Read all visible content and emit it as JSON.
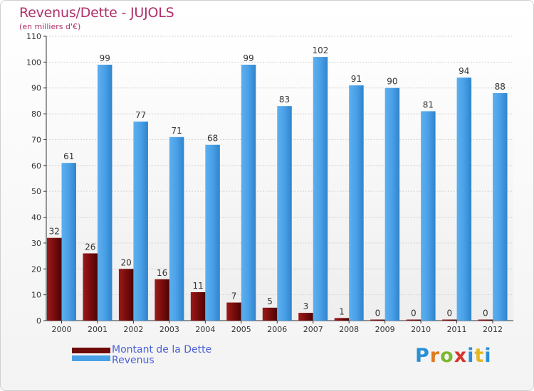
{
  "header": {
    "title": "Revenus/Dette - JUJOLS",
    "subtitle": "(en milliers d'€)"
  },
  "legend": {
    "items": [
      {
        "label": "Montant de la Dette",
        "color": "#7a0c0c"
      },
      {
        "label": "Revenus",
        "color": "#4aa0e6"
      }
    ]
  },
  "brand": {
    "text": "Proxiti",
    "letter_colors": [
      "#2a8fd6",
      "#e07a1e",
      "#7cb82f",
      "#d9342b",
      "#2a8fd6",
      "#e6b81e",
      "#2a8fd6"
    ]
  },
  "chart_data": {
    "type": "bar",
    "title": "Revenus/Dette - JUJOLS",
    "subtitle": "(en milliers d'€)",
    "xlabel": "",
    "ylabel": "",
    "categories": [
      "2000",
      "2001",
      "2002",
      "2003",
      "2004",
      "2005",
      "2006",
      "2007",
      "2008",
      "2009",
      "2010",
      "2011",
      "2012"
    ],
    "series": [
      {
        "name": "Montant de la Dette",
        "color": "#7a0c0c",
        "values": [
          32,
          26,
          20,
          16,
          11,
          7,
          5,
          3,
          1,
          0,
          0,
          0,
          0
        ]
      },
      {
        "name": "Revenus",
        "color": "#4aa0e6",
        "values": [
          61,
          99,
          77,
          71,
          68,
          99,
          83,
          102,
          91,
          90,
          81,
          94,
          88
        ]
      }
    ],
    "ylim": [
      0,
      110
    ],
    "yticks": [
      0,
      10,
      20,
      30,
      40,
      50,
      60,
      70,
      80,
      90,
      100,
      110
    ],
    "grid": true,
    "legend_position": "bottom-left"
  }
}
